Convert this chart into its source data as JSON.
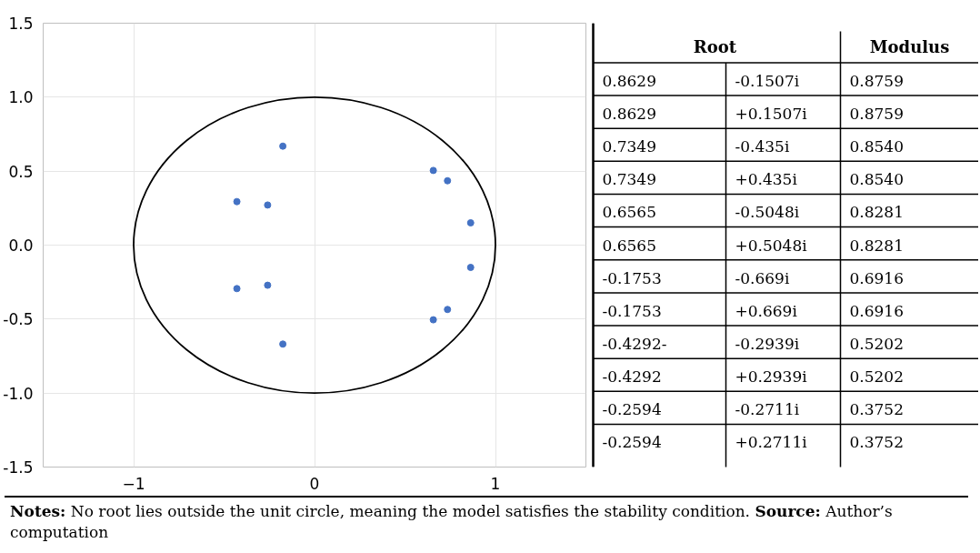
{
  "chart_data": [
    {
      "type": "scatter",
      "series": [
        {
          "type": "scatter",
          "color": "#4472c4",
          "marker": "circle",
          "x": [
            0.8629,
            0.8629,
            0.7349,
            0.7349,
            0.6565,
            0.6565,
            -0.1753,
            -0.1753,
            -0.4292,
            -0.4292,
            -0.2594,
            -0.2594
          ],
          "values": [
            -0.1507,
            0.1507,
            -0.435,
            0.435,
            -0.5048,
            0.5048,
            -0.669,
            0.669,
            -0.2939,
            0.2939,
            -0.2711,
            0.2711
          ]
        }
      ],
      "xlim": [
        -1.5,
        1.5
      ],
      "xticks": [
        -1,
        0,
        1
      ],
      "ylim": [
        -1.5,
        1.5
      ],
      "yticks": [
        {
          "value": -1.5,
          "label": "-1.5"
        },
        {
          "value": -1,
          "label": "-1.0"
        },
        {
          "value": -0.5,
          "label": "-0.5"
        },
        {
          "value": 0,
          "label": "0.0"
        },
        {
          "value": 0.5,
          "label": "0.5"
        },
        {
          "value": 1,
          "label": "1.0"
        },
        {
          "value": 1.5,
          "label": "1.5"
        }
      ],
      "grid": true,
      "annotations": [
        "Notes: No root lies outside the unit circle, meaning the model satisfies the stability condition.",
        "Source: Author’s computation"
      ]
    },
    {
      "type": "other",
      "categories": [
        "Root",
        "Modulus"
      ],
      "cell_labels": [
        [
          "0.8629",
          "-0.1507i",
          "0.8759"
        ],
        [
          "0.8629",
          "+0.1507i",
          "0.8759"
        ],
        [
          "0.7349",
          "-0.435i",
          "0.8540"
        ],
        [
          "0.7349",
          "+0.435i",
          "0.8540"
        ],
        [
          "0.6565",
          "-0.5048i",
          "0.8281"
        ],
        [
          "0.6565",
          "+0.5048i",
          "0.8281"
        ],
        [
          "-0.1753",
          "-0.669i",
          "0.6916"
        ],
        [
          "-0.1753",
          "+0.669i",
          "0.6916"
        ],
        [
          "-0.4292-",
          "-0.2939i",
          "0.5202"
        ],
        [
          "-0.4292",
          "+0.2939i",
          "0.5202"
        ],
        [
          "-0.2594",
          "-0.2711i",
          "0.3752"
        ],
        [
          "-0.2594",
          "+0.2711i",
          "0.3752"
        ]
      ]
    }
  ]
}
